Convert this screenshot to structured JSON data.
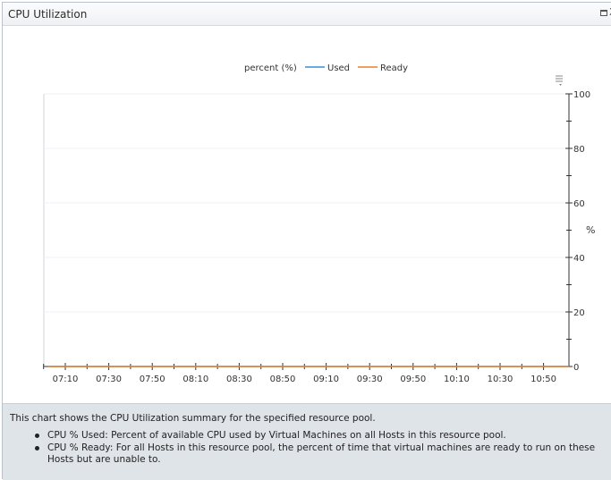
{
  "window": {
    "title": "CPU Utilization",
    "maximize_icon": "maximize-icon",
    "close_label": "X"
  },
  "chart_data": {
    "type": "line",
    "legend_title": "percent (%)",
    "legend_position": "top-center",
    "x": [
      "07:10",
      "07:30",
      "07:50",
      "08:10",
      "08:30",
      "08:50",
      "09:10",
      "09:30",
      "09:50",
      "10:10",
      "10:30",
      "10:50"
    ],
    "series": [
      {
        "name": "Used",
        "color": "#3a8fd9",
        "values": [
          0,
          0,
          0,
          0,
          0,
          0,
          0,
          0,
          0,
          0,
          0,
          0
        ]
      },
      {
        "name": "Ready",
        "color": "#e8822a",
        "values": [
          0,
          0,
          0,
          0,
          0,
          0,
          0,
          0,
          0,
          0,
          0,
          0
        ]
      }
    ],
    "ylabel": "%",
    "y_ticks": [
      "0",
      "20",
      "40",
      "60",
      "80",
      "100"
    ],
    "ylim": [
      0,
      100
    ],
    "y_axis_side": "right",
    "grid": true
  },
  "description": {
    "intro": "This chart shows the CPU Utilization summary for the specified resource pool.",
    "items": [
      "CPU % Used: Percent of available CPU used by Virtual Machines on all Hosts in this resource pool.",
      "CPU % Ready: For all Hosts in this resource pool, the percent of time that virtual machines are ready to run on these Hosts but are unable to."
    ]
  }
}
